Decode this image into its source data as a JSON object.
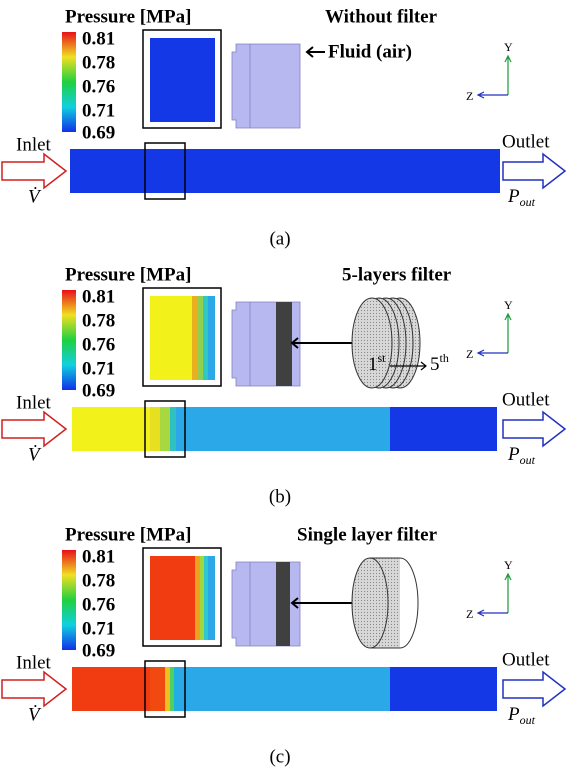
{
  "panels": [
    {
      "colorbar": {
        "title": "Pressure [MPa]",
        "ticks": [
          "0.81",
          "0.78",
          "0.76",
          "0.71",
          "0.69"
        ]
      },
      "title": "Without filter",
      "fluid_label": "Fluid (air)",
      "axes": {
        "y": "Y",
        "z": "Z"
      },
      "inlet": "Inlet",
      "inlet_symbol": "V̇",
      "outlet": "Outlet",
      "outlet_symbol": {
        "base": "P",
        "sub": "out"
      },
      "label": "(a)"
    },
    {
      "colorbar": {
        "title": "Pressure [MPa]",
        "ticks": [
          "0.81",
          "0.78",
          "0.76",
          "0.71",
          "0.69"
        ]
      },
      "title": "5-layers filter",
      "layer_range": {
        "first": {
          "base": "1",
          "sup": "st"
        },
        "last": {
          "base": "5",
          "sup": "th"
        }
      },
      "axes": {
        "y": "Y",
        "z": "Z"
      },
      "inlet": "Inlet",
      "inlet_symbol": "V̇",
      "outlet": "Outlet",
      "outlet_symbol": {
        "base": "P",
        "sub": "out"
      },
      "label": "(b)"
    },
    {
      "colorbar": {
        "title": "Pressure [MPa]",
        "ticks": [
          "0.81",
          "0.78",
          "0.76",
          "0.71",
          "0.69"
        ]
      },
      "title": "Single layer filter",
      "axes": {
        "y": "Y",
        "z": "Z"
      },
      "inlet": "Inlet",
      "inlet_symbol": "V̇",
      "outlet": "Outlet",
      "outlet_symbol": {
        "base": "P",
        "sub": "out"
      },
      "label": "(c)"
    }
  ]
}
